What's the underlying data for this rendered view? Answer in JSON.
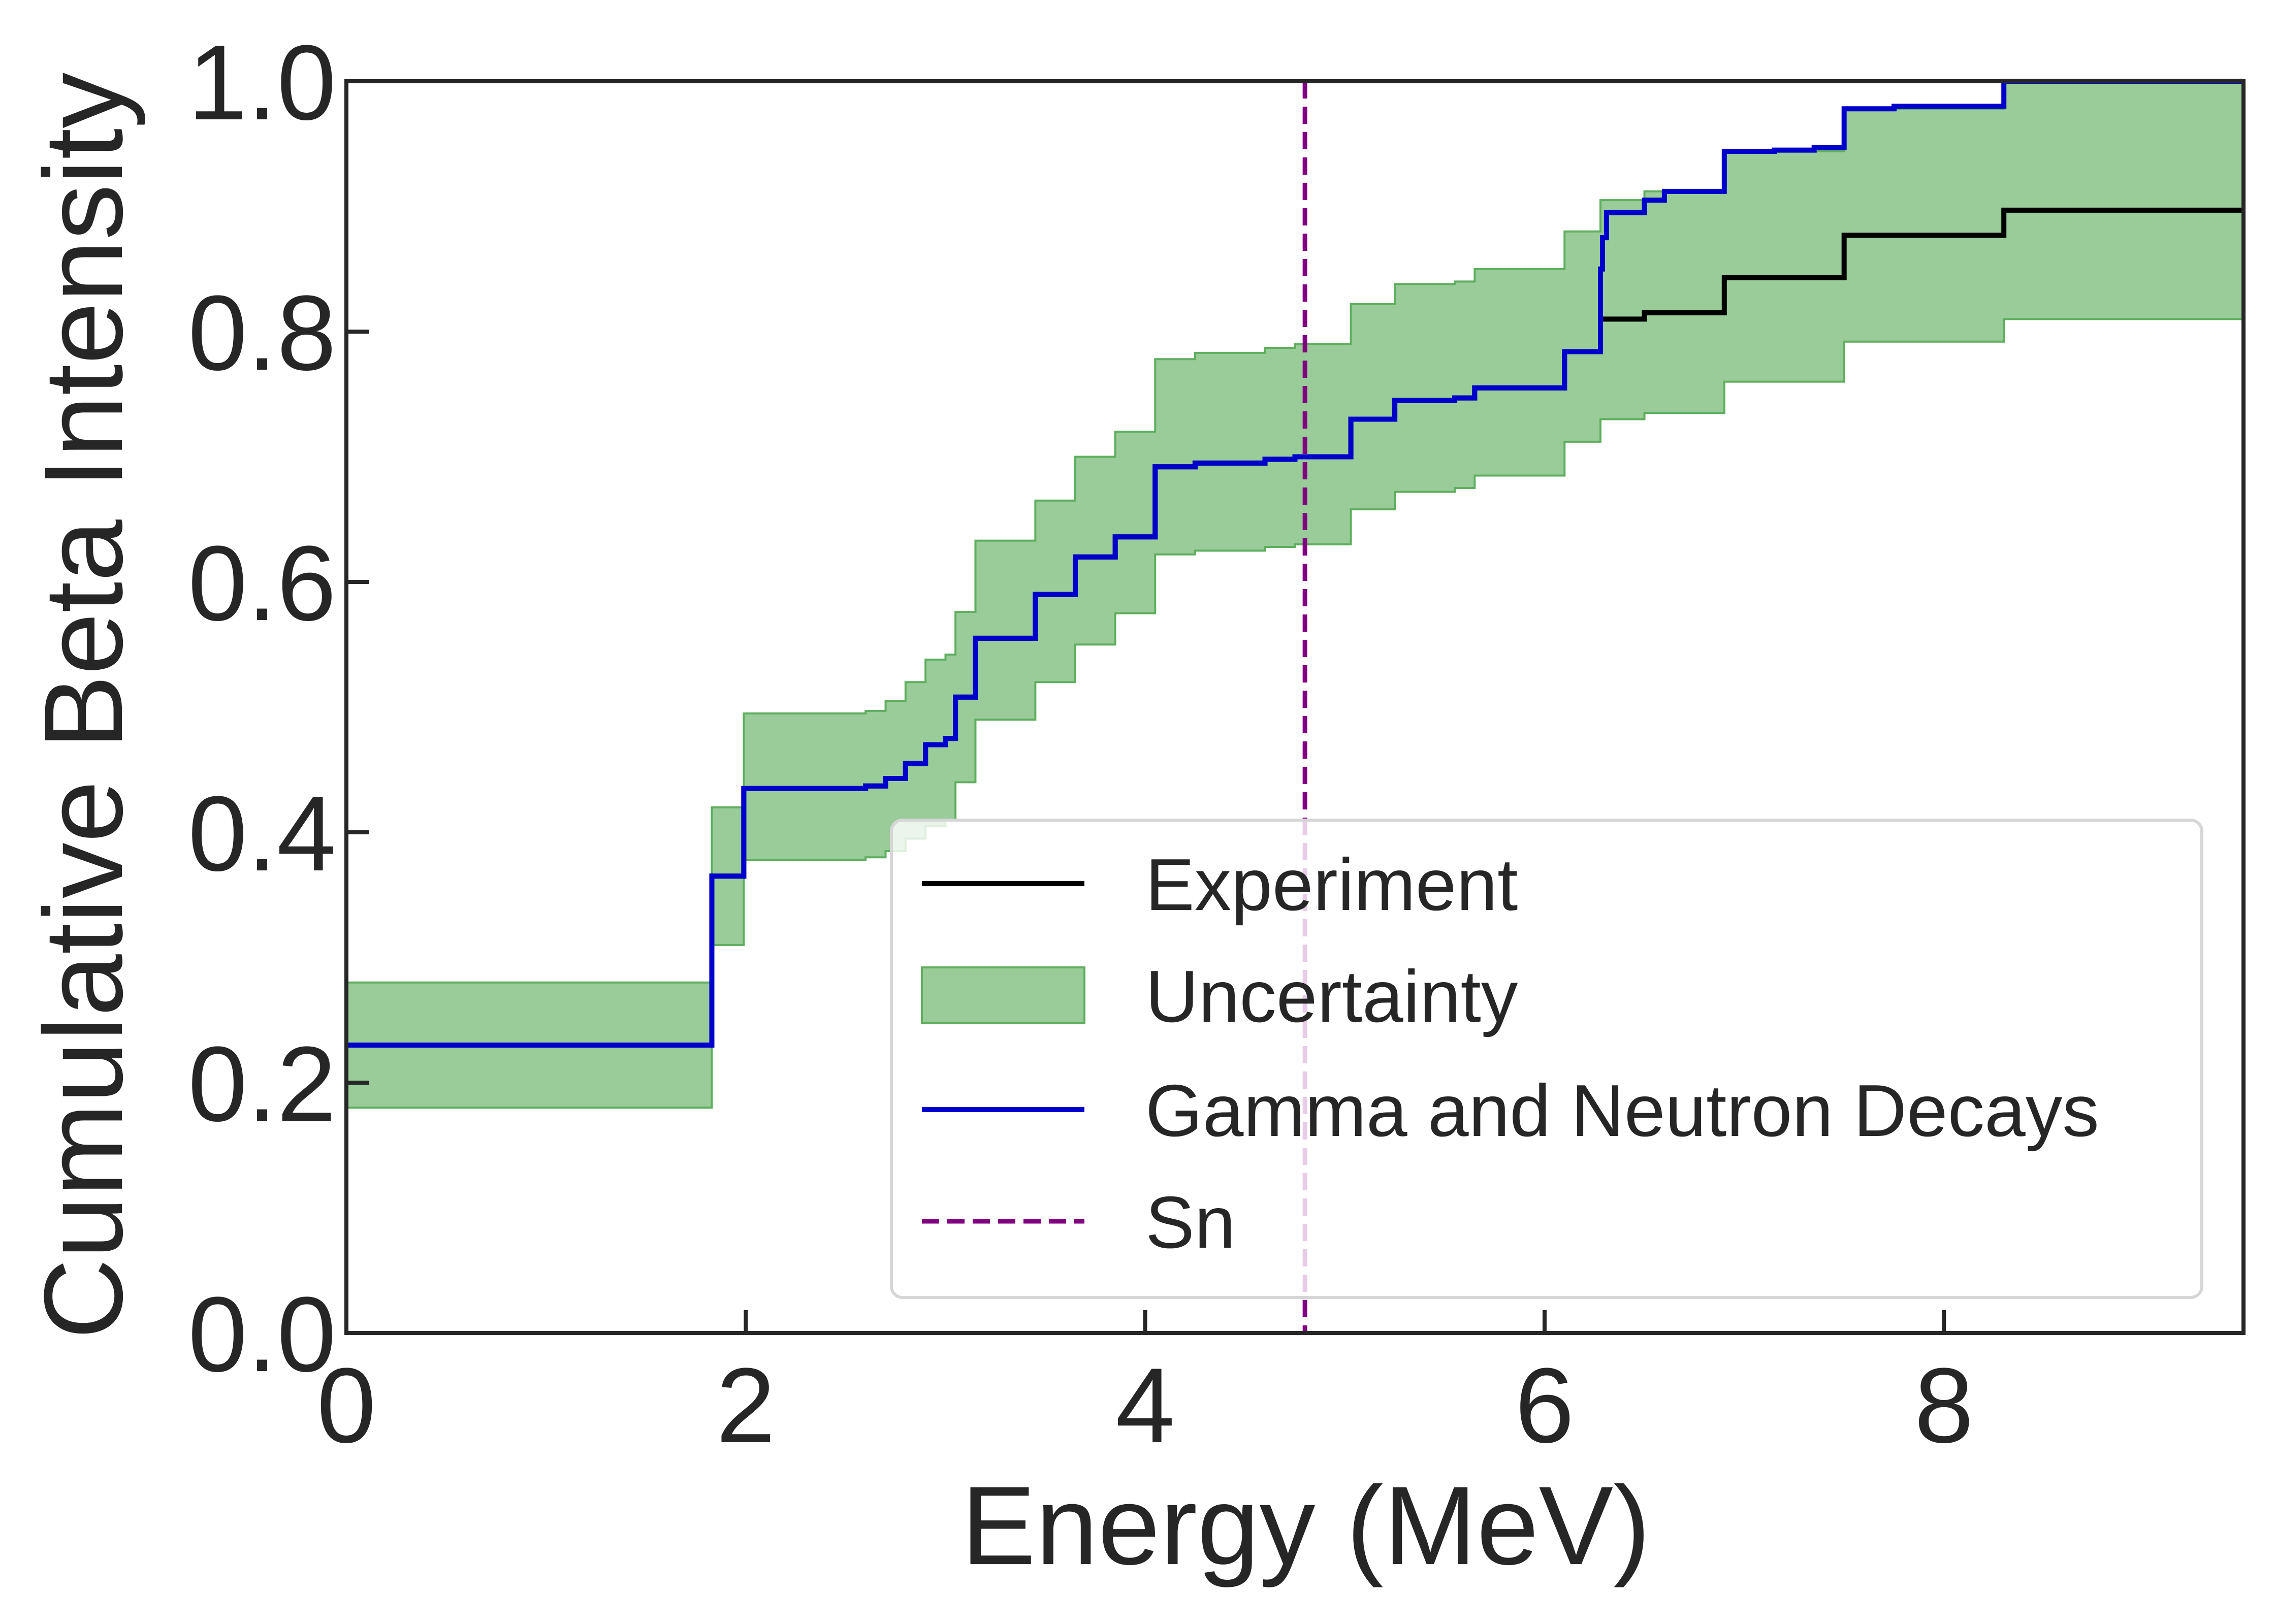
{
  "chart_data": {
    "type": "line",
    "xlabel": "Energy (MeV)",
    "ylabel": "Cumulative Beta Intensity",
    "xlim": [
      0,
      9.5
    ],
    "ylim": [
      0,
      1.0
    ],
    "xticks": [
      0,
      2,
      4,
      6,
      8
    ],
    "yticks": [
      0.0,
      0.2,
      0.4,
      0.6,
      0.8,
      1.0
    ],
    "xtick_labels": [
      "0",
      "2",
      "4",
      "6",
      "8"
    ],
    "ytick_labels": [
      "0.0",
      "0.2",
      "0.4",
      "0.6",
      "0.8",
      "1.0"
    ],
    "grid": false,
    "legend_position": "lower-right",
    "legend": [
      {
        "key": "experiment",
        "label": "Experiment"
      },
      {
        "key": "uncertainty",
        "label": "Uncertainty"
      },
      {
        "key": "gamma",
        "label": "Gamma and Neutron Decays"
      },
      {
        "key": "sn",
        "label": "Sn"
      }
    ],
    "colors": {
      "experiment": "#000000",
      "uncertainty_fill": "#99cc99",
      "uncertainty_edge": "#5fae5f",
      "gamma": "#0000cd",
      "sn": "#800080",
      "axes": "#262626"
    },
    "series": [
      {
        "key": "experiment",
        "step": "post",
        "points": [
          [
            0,
            0.23
          ],
          [
            1.83,
            0.365
          ],
          [
            1.99,
            0.435
          ],
          [
            2.6,
            0.437
          ],
          [
            2.7,
            0.443
          ],
          [
            2.8,
            0.455
          ],
          [
            2.9,
            0.47
          ],
          [
            3.0,
            0.475
          ],
          [
            3.05,
            0.508
          ],
          [
            3.15,
            0.555
          ],
          [
            3.45,
            0.59
          ],
          [
            3.65,
            0.62
          ],
          [
            3.85,
            0.636
          ],
          [
            4.05,
            0.692
          ],
          [
            4.25,
            0.695
          ],
          [
            4.6,
            0.698
          ],
          [
            4.75,
            0.7
          ],
          [
            5.03,
            0.73
          ],
          [
            5.25,
            0.745
          ],
          [
            5.55,
            0.747
          ],
          [
            5.65,
            0.755
          ],
          [
            6.1,
            0.784
          ],
          [
            6.28,
            0.81
          ],
          [
            6.5,
            0.815
          ],
          [
            6.9,
            0.843
          ],
          [
            7.5,
            0.877
          ],
          [
            8.3,
            0.897
          ],
          [
            9.5,
            0.897
          ]
        ]
      },
      {
        "key": "gamma",
        "step": "post",
        "points": [
          [
            0,
            0.23
          ],
          [
            1.83,
            0.365
          ],
          [
            1.99,
            0.435
          ],
          [
            2.6,
            0.437
          ],
          [
            2.7,
            0.443
          ],
          [
            2.8,
            0.455
          ],
          [
            2.9,
            0.47
          ],
          [
            3.0,
            0.475
          ],
          [
            3.05,
            0.508
          ],
          [
            3.15,
            0.555
          ],
          [
            3.45,
            0.59
          ],
          [
            3.65,
            0.62
          ],
          [
            3.85,
            0.636
          ],
          [
            4.05,
            0.692
          ],
          [
            4.25,
            0.695
          ],
          [
            4.6,
            0.698
          ],
          [
            4.75,
            0.7
          ],
          [
            5.03,
            0.73
          ],
          [
            5.25,
            0.745
          ],
          [
            5.55,
            0.747
          ],
          [
            5.65,
            0.755
          ],
          [
            6.1,
            0.784
          ],
          [
            6.28,
            0.85
          ],
          [
            6.29,
            0.875
          ],
          [
            6.31,
            0.895
          ],
          [
            6.5,
            0.905
          ],
          [
            6.6,
            0.912
          ],
          [
            6.9,
            0.944
          ],
          [
            7.15,
            0.945
          ],
          [
            7.35,
            0.947
          ],
          [
            7.5,
            0.978
          ],
          [
            7.75,
            0.98
          ],
          [
            8.3,
            1.0
          ],
          [
            9.5,
            1.0
          ]
        ]
      }
    ],
    "uncertainty_band": {
      "step": "post",
      "x": [
        0,
        1.83,
        1.99,
        2.6,
        2.7,
        2.8,
        2.9,
        3.0,
        3.05,
        3.15,
        3.45,
        3.65,
        3.85,
        4.05,
        4.25,
        4.6,
        4.75,
        5.03,
        5.25,
        5.55,
        5.65,
        6.1,
        6.28,
        6.5,
        6.9,
        7.5,
        8.3,
        9.5
      ],
      "lower": [
        0.18,
        0.31,
        0.378,
        0.38,
        0.385,
        0.395,
        0.405,
        0.41,
        0.44,
        0.49,
        0.52,
        0.55,
        0.575,
        0.622,
        0.625,
        0.628,
        0.63,
        0.658,
        0.672,
        0.675,
        0.685,
        0.712,
        0.73,
        0.735,
        0.76,
        0.792,
        0.81,
        0.81
      ],
      "upper": [
        0.28,
        0.42,
        0.495,
        0.497,
        0.505,
        0.52,
        0.538,
        0.542,
        0.576,
        0.633,
        0.665,
        0.7,
        0.72,
        0.778,
        0.783,
        0.787,
        0.79,
        0.822,
        0.838,
        0.84,
        0.85,
        0.88,
        0.905,
        0.912,
        0.944,
        0.978,
        1.0,
        1.0
      ]
    },
    "vlines": [
      {
        "key": "sn",
        "x": 4.8,
        "style": "dashed"
      }
    ]
  }
}
